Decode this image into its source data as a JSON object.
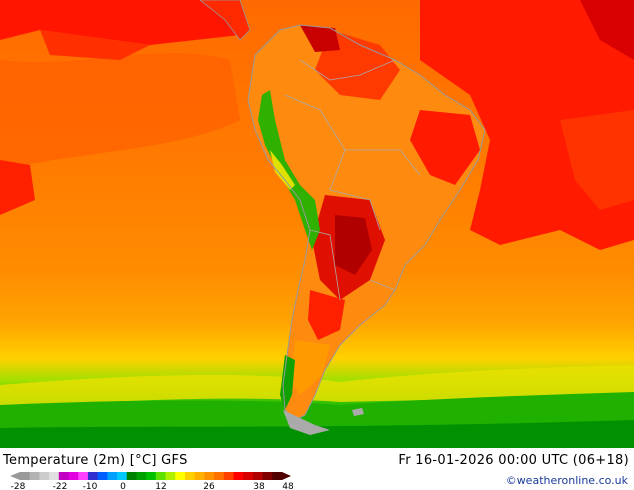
{
  "title": "Temperature (2m) [°C] GFS",
  "datetime": "Fr 16-01-2026 00:00 UTC (06+18)",
  "credit": "©weatheronline.co.uk",
  "legend": {
    "ticks": [
      "-28",
      "-22",
      "-10",
      "0",
      "12",
      "26",
      "38",
      "48"
    ],
    "colors": [
      "#999999",
      "#b3b3b3",
      "#cccccc",
      "#e0e0e0",
      "#c000c0",
      "#e000e0",
      "#ff40ff",
      "#3030d0",
      "#0060ff",
      "#00a0ff",
      "#00c8ff",
      "#008000",
      "#00a000",
      "#00c000",
      "#60e000",
      "#b0f000",
      "#ffff00",
      "#ffd000",
      "#ffb000",
      "#ff9000",
      "#ff7000",
      "#ff4000",
      "#ff0000",
      "#d80000",
      "#b00000",
      "#800000",
      "#500000"
    ]
  }
}
